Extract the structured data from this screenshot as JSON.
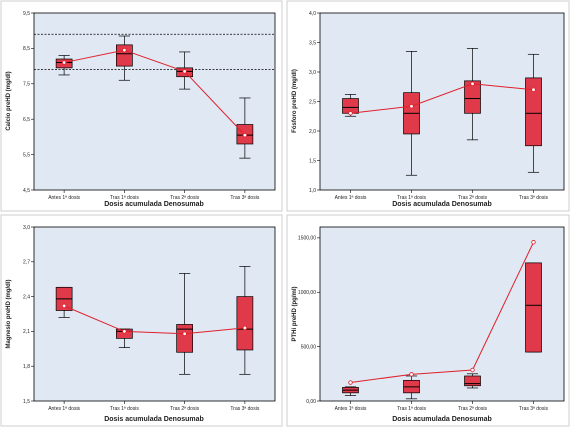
{
  "chart_data": [
    {
      "type": "box",
      "categories": [
        "Antes 1ª dosis",
        "Tras 1ª dosis",
        "Tras 2ª dosis",
        "Tras 3ª dosis"
      ],
      "xlabel": "Dosis acumulada Denosumab",
      "ylabel": "Calcio preHD (mg/dl)",
      "ylim": [
        4.5,
        9.5
      ],
      "yticks": [
        "4,5",
        "5,5",
        "6,5",
        "7,5",
        "8,5",
        "9,5"
      ],
      "ytick_values": [
        4.5,
        5.5,
        6.5,
        7.5,
        8.5,
        9.5
      ],
      "reference_lines": [
        8.9,
        7.9
      ],
      "boxes": [
        {
          "whisker_low": 7.75,
          "q1": 7.95,
          "median": 8.1,
          "q3": 8.2,
          "whisker_high": 8.3
        },
        {
          "whisker_low": 7.6,
          "q1": 8.0,
          "median": 8.35,
          "q3": 8.6,
          "whisker_high": 8.85
        },
        {
          "whisker_low": 7.35,
          "q1": 7.7,
          "median": 7.85,
          "q3": 7.95,
          "whisker_high": 8.4
        },
        {
          "whisker_low": 5.4,
          "q1": 5.8,
          "median": 6.05,
          "q3": 6.35,
          "whisker_high": 7.1
        }
      ],
      "means": [
        8.1,
        8.45,
        7.85,
        6.05
      ]
    },
    {
      "type": "box",
      "categories": [
        "Antes 1ª dosis",
        "Tras 1ª dosis",
        "Tras 2ª dosis",
        "Tras 3ª dosis"
      ],
      "xlabel": "Dosis acumulada Denosumab",
      "ylabel": "Fósforo preHD (mg/dl)",
      "ylim": [
        1.0,
        4.0
      ],
      "yticks": [
        "1,0",
        "1,5",
        "2,0",
        "2,5",
        "3,0",
        "3,5",
        "4,0"
      ],
      "ytick_values": [
        1.0,
        1.5,
        2.0,
        2.5,
        3.0,
        3.5,
        4.0
      ],
      "boxes": [
        {
          "whisker_low": 2.25,
          "q1": 2.3,
          "median": 2.4,
          "q3": 2.55,
          "whisker_high": 2.62
        },
        {
          "whisker_low": 1.25,
          "q1": 1.95,
          "median": 2.3,
          "q3": 2.65,
          "whisker_high": 3.35
        },
        {
          "whisker_low": 1.85,
          "q1": 2.3,
          "median": 2.55,
          "q3": 2.85,
          "whisker_high": 3.4
        },
        {
          "whisker_low": 1.3,
          "q1": 1.75,
          "median": 2.3,
          "q3": 2.9,
          "whisker_high": 3.3
        }
      ],
      "means": [
        2.3,
        2.42,
        2.8,
        2.7
      ]
    },
    {
      "type": "box",
      "categories": [
        "Antes 1ª dosis",
        "Tras 1ª dosis",
        "Tras 2ª dosis",
        "Tras 3ª dosis"
      ],
      "xlabel": "Dosis acumulada Denosumab",
      "ylabel": "Magnesio preHD (mg/dl)",
      "ylim": [
        1.5,
        3.0
      ],
      "yticks": [
        "1,5",
        "1,8",
        "2,1",
        "2,4",
        "2,7",
        "3,0"
      ],
      "ytick_values": [
        1.5,
        1.8,
        2.1,
        2.4,
        2.7,
        3.0
      ],
      "boxes": [
        {
          "whisker_low": 2.22,
          "q1": 2.28,
          "median": 2.38,
          "q3": 2.48,
          "whisker_high": 2.48
        },
        {
          "whisker_low": 1.96,
          "q1": 2.04,
          "median": 2.1,
          "q3": 2.12,
          "whisker_high": 2.12
        },
        {
          "whisker_low": 1.73,
          "q1": 1.92,
          "median": 2.12,
          "q3": 2.16,
          "whisker_high": 2.6
        },
        {
          "whisker_low": 1.73,
          "q1": 1.94,
          "median": 2.12,
          "q3": 2.4,
          "whisker_high": 2.66
        }
      ],
      "means": [
        2.32,
        2.1,
        2.08,
        2.13
      ]
    },
    {
      "type": "box",
      "categories": [
        "Antes 1ª dosis",
        "Tras 1ª dosis",
        "Tras 2ª dosis",
        "Tras 3ª dosis"
      ],
      "xlabel": "Dosis acumulada Denosumab",
      "ylabel": "PTHi preHD (pg/ml)",
      "ylim": [
        0,
        1600
      ],
      "yticks": [
        "0,00",
        "500,00",
        "1000,00",
        "1500,00"
      ],
      "ytick_values": [
        0,
        500,
        1000,
        1500
      ],
      "boxes": [
        {
          "whisker_low": 50,
          "q1": 75,
          "median": 100,
          "q3": 125,
          "whisker_high": 130
        },
        {
          "whisker_low": 20,
          "q1": 75,
          "median": 130,
          "q3": 190,
          "whisker_high": 230
        },
        {
          "whisker_low": 120,
          "q1": 140,
          "median": 160,
          "q3": 230,
          "whisker_high": 250
        },
        {
          "whisker_low": 450,
          "q1": 450,
          "median": 880,
          "q3": 1270,
          "whisker_high": 1270
        }
      ],
      "means": [
        170,
        245,
        285,
        1460
      ]
    }
  ]
}
